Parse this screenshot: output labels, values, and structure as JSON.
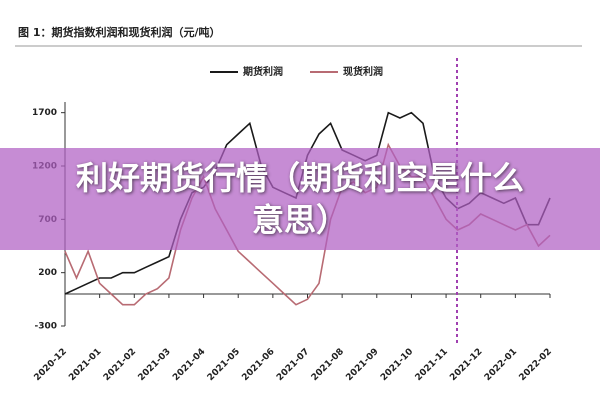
{
  "chart_data": {
    "type": "line",
    "title": "图 1：期货指数利润和现货利润（元/吨）",
    "categories": [
      "2020-12",
      null,
      null,
      "2021-01",
      null,
      null,
      "2021-02",
      null,
      null,
      "2021-03",
      null,
      null,
      "2021-04",
      null,
      null,
      "2021-05",
      null,
      null,
      "2021-06",
      null,
      null,
      "2021-07",
      null,
      null,
      "2021-08",
      null,
      null,
      "2021-09",
      null,
      null,
      "2021-10",
      null,
      null,
      "2021-11",
      null,
      null,
      "2021-12",
      null,
      null,
      "2022-01",
      null,
      null,
      "2022-02"
    ],
    "series": [
      {
        "name": "期货利润",
        "color": "#1a1a1a",
        "values": [
          0,
          50,
          100,
          150,
          150,
          200,
          200,
          250,
          300,
          350,
          700,
          950,
          1000,
          1150,
          1400,
          1500,
          1600,
          1200,
          1000,
          950,
          900,
          1300,
          1500,
          1600,
          1350,
          1300,
          1250,
          1300,
          1700,
          1650,
          1700,
          1600,
          1100,
          900,
          800,
          850,
          950,
          900,
          850,
          900,
          650,
          650,
          900
        ]
      },
      {
        "name": "现货利润",
        "color": "#b86b73",
        "values": [
          400,
          150,
          400,
          100,
          0,
          -100,
          -100,
          0,
          50,
          150,
          600,
          900,
          1100,
          800,
          600,
          400,
          300,
          200,
          100,
          0,
          -100,
          -50,
          100,
          700,
          1000,
          1050,
          950,
          1000,
          1400,
          1200,
          1100,
          1100,
          900,
          700,
          600,
          650,
          750,
          700,
          650,
          600,
          650,
          450,
          550
        ]
      }
    ],
    "ylim": [
      -300,
      1800
    ],
    "yticks": [
      -300,
      200,
      700,
      1200,
      1700
    ]
  },
  "banner": {
    "text": "利好期货行情（期货利空是什么意思）"
  }
}
